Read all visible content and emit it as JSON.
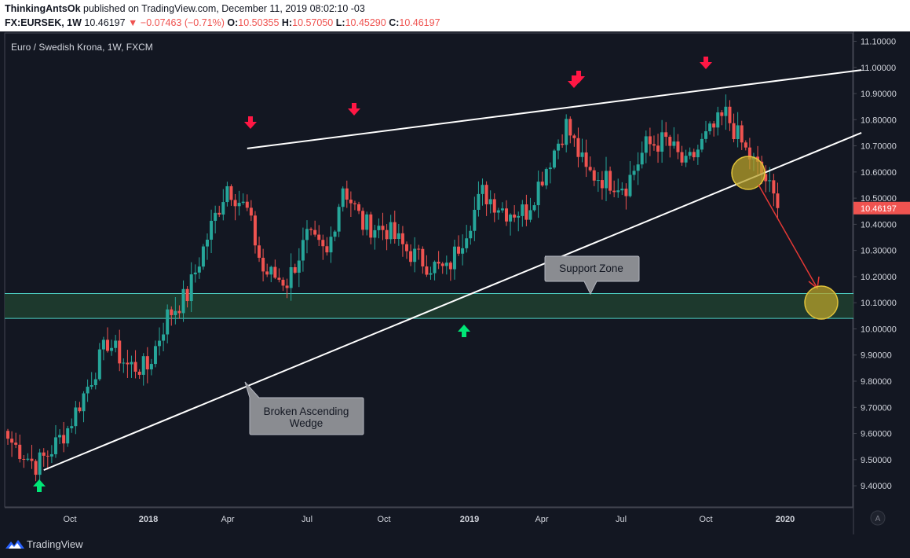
{
  "header": {
    "author": "ThinkingAntsOk",
    "published": " published on TradingView.com, December 11, 2019 08:02:10 -03",
    "symbol": "FX:EURSEK, 1W",
    "last": "10.46197",
    "change": "▼ −0.07463 (−0.71%)",
    "open_label": "O:",
    "open": "10.50355",
    "high_label": "H:",
    "high": "10.57050",
    "low_label": "L:",
    "low": "10.45290",
    "close_label": "C:",
    "close": "10.46197"
  },
  "chart_title": "Euro / Swedish Krona, 1W, FXCM",
  "footer": {
    "brand": "TradingView",
    "auto_scale": "A"
  },
  "colors": {
    "up": "#26a69a",
    "down": "#ef5350",
    "background": "#131722",
    "zone": "#1f3d2f",
    "zone_border": "#4dd0c4",
    "arrow_up": "#00e676",
    "arrow_down": "#ff1744"
  },
  "chart_data": {
    "type": "candlestick",
    "title": "Euro / Swedish Krona, 1W, FXCM",
    "x_labels": [
      "Oct",
      "2018",
      "Apr",
      "Jul",
      "Oct",
      "2019",
      "Apr",
      "Jul",
      "Oct",
      "2020"
    ],
    "y_ticks": [
      "11.10000",
      "11.00000",
      "10.90000",
      "10.80000",
      "10.70000",
      "10.60000",
      "10.50000",
      "10.40000",
      "10.30000",
      "10.20000",
      "10.10000",
      "10.00000",
      "9.90000",
      "9.80000",
      "9.70000",
      "9.60000",
      "9.50000",
      "9.40000"
    ],
    "ylim": [
      9.285,
      11.12
    ],
    "last_price_label": "10.46197",
    "last_price": 10.46197,
    "anchors": [
      {
        "i": 0,
        "c": 9.58
      },
      {
        "i": 7,
        "c": 9.48
      },
      {
        "i": 10,
        "c": 9.52
      },
      {
        "i": 15,
        "c": 9.62
      },
      {
        "i": 20,
        "c": 9.78
      },
      {
        "i": 25,
        "c": 9.95
      },
      {
        "i": 30,
        "c": 9.86
      },
      {
        "i": 35,
        "c": 9.85
      },
      {
        "i": 40,
        "c": 10.05
      },
      {
        "i": 45,
        "c": 10.13
      },
      {
        "i": 50,
        "c": 10.35
      },
      {
        "i": 55,
        "c": 10.55
      },
      {
        "i": 60,
        "c": 10.45
      },
      {
        "i": 64,
        "c": 10.22
      },
      {
        "i": 70,
        "c": 10.18
      },
      {
        "i": 75,
        "c": 10.35
      },
      {
        "i": 80,
        "c": 10.28
      },
      {
        "i": 84,
        "c": 10.55
      },
      {
        "i": 89,
        "c": 10.4
      },
      {
        "i": 95,
        "c": 10.38
      },
      {
        "i": 100,
        "c": 10.3
      },
      {
        "i": 105,
        "c": 10.25
      },
      {
        "i": 110,
        "c": 10.22
      },
      {
        "i": 114,
        "c": 10.35
      },
      {
        "i": 119,
        "c": 10.52
      },
      {
        "i": 125,
        "c": 10.45
      },
      {
        "i": 130,
        "c": 10.45
      },
      {
        "i": 135,
        "c": 10.62
      },
      {
        "i": 140,
        "c": 10.78
      },
      {
        "i": 145,
        "c": 10.6
      },
      {
        "i": 150,
        "c": 10.57
      },
      {
        "i": 155,
        "c": 10.55
      },
      {
        "i": 160,
        "c": 10.7
      },
      {
        "i": 165,
        "c": 10.72
      },
      {
        "i": 170,
        "c": 10.62
      },
      {
        "i": 175,
        "c": 10.73
      },
      {
        "i": 180,
        "c": 10.82
      },
      {
        "i": 185,
        "c": 10.68
      },
      {
        "i": 190,
        "c": 10.57
      },
      {
        "i": 193,
        "c": 10.46197
      }
    ],
    "trendlines": [
      {
        "name": "wedge-upper-line",
        "from": [
          60,
          10.69
        ],
        "to": [
          214,
          10.99
        ]
      },
      {
        "name": "wedge-lower-line",
        "from": [
          9,
          9.46
        ],
        "to": [
          214,
          10.75
        ]
      }
    ],
    "support_zone": {
      "from": 10.04,
      "to": 10.135
    },
    "annotations": [
      {
        "name": "support-zone-label",
        "text": "Support Zone"
      },
      {
        "name": "wedge-label",
        "line1": "Broken Ascending",
        "line2": "Wedge"
      }
    ]
  }
}
